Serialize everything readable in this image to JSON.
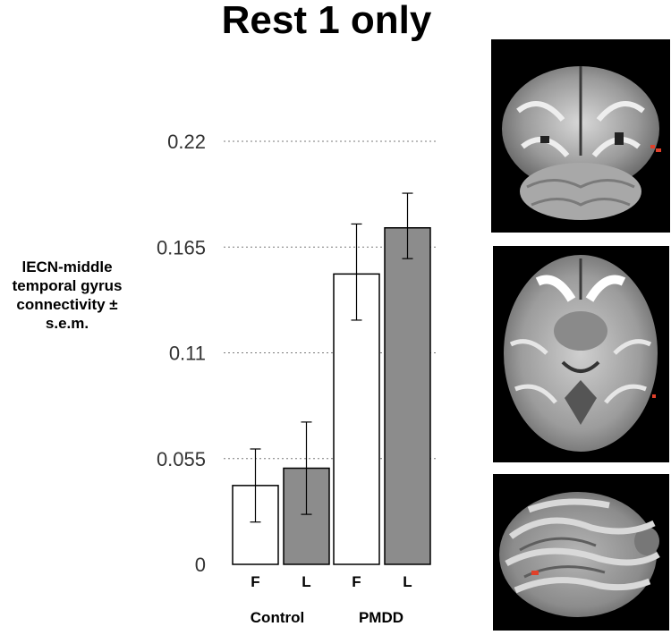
{
  "title": "Rest 1 only",
  "ylabel_lines": [
    "lECN-middle",
    "temporal gyrus",
    "connectivity ±",
    "s.e.m."
  ],
  "chart_data": {
    "type": "bar",
    "title": "Rest 1 only",
    "ylabel": "lECN-middle temporal gyrus connectivity ± s.e.m.",
    "xlabel": "",
    "ylim": [
      0,
      0.22
    ],
    "yticks": [
      "0",
      "0.055",
      "0.11",
      "0.165",
      "0.22"
    ],
    "groups": [
      "Control",
      "PMDD"
    ],
    "categories": [
      "F",
      "L",
      "F",
      "L"
    ],
    "bars": [
      {
        "group": "Control",
        "label": "F",
        "value": 0.041,
        "err_low": 0.022,
        "err_high": 0.06,
        "color": "#ffffff"
      },
      {
        "group": "Control",
        "label": "L",
        "value": 0.05,
        "err_low": 0.026,
        "err_high": 0.074,
        "color": "#8c8c8c"
      },
      {
        "group": "PMDD",
        "label": "F",
        "value": 0.151,
        "err_low": 0.127,
        "err_high": 0.177,
        "color": "#ffffff"
      },
      {
        "group": "PMDD",
        "label": "L",
        "value": 0.175,
        "err_low": 0.159,
        "err_high": 0.193,
        "color": "#8c8c8c"
      }
    ],
    "grid": "dotted-horizontal"
  },
  "images": {
    "panel1": "brain-coronal-slice",
    "panel2": "brain-axial-slice",
    "panel3": "brain-sagittal-slice",
    "highlight_color": "#e0402a"
  }
}
